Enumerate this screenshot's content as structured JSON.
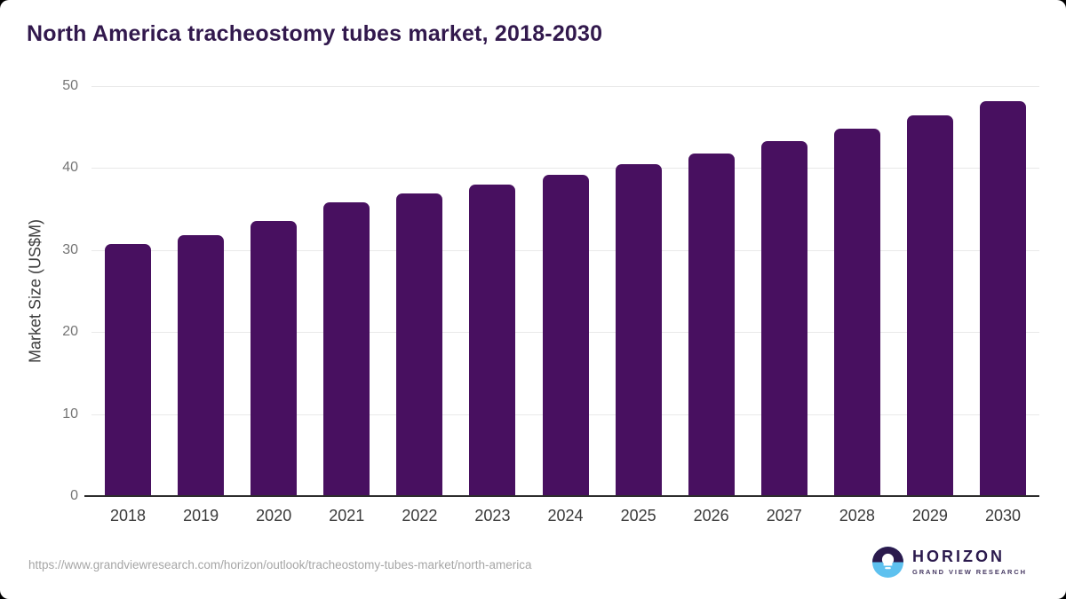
{
  "title": "North America tracheostomy tubes market, 2018-2030",
  "chart_data": {
    "type": "bar",
    "title": "North America tracheostomy tubes market, 2018-2030",
    "categories": [
      "2018",
      "2019",
      "2020",
      "2021",
      "2022",
      "2023",
      "2024",
      "2025",
      "2026",
      "2027",
      "2028",
      "2029",
      "2030"
    ],
    "values": [
      30.7,
      31.8,
      33.6,
      35.8,
      36.9,
      38.0,
      39.2,
      40.5,
      41.8,
      43.3,
      44.8,
      46.4,
      48.2
    ],
    "xlabel": "",
    "ylabel": "Market Size (US$M)",
    "ylim": [
      0,
      50
    ],
    "yticks": [
      0,
      10,
      20,
      30,
      40,
      50
    ],
    "grid": true,
    "legend": "none",
    "bar_color": "#481060"
  },
  "colors": {
    "title": "#32194d",
    "bar": "#481060",
    "gridline": "#e9e9e9",
    "axis": "#2d2d2d",
    "y_tick": "#757575",
    "x_tick": "#3a3a3a",
    "url": "#a6a6a6",
    "logo_purple": "#2b1a4d",
    "logo_blue": "#5ec1ef"
  },
  "footer": {
    "source_url": "https://www.grandviewresearch.com/horizon/outlook/tracheostomy-tubes-market/north-america",
    "logo": {
      "name": "HORIZON",
      "subtitle": "GRAND VIEW RESEARCH"
    }
  }
}
